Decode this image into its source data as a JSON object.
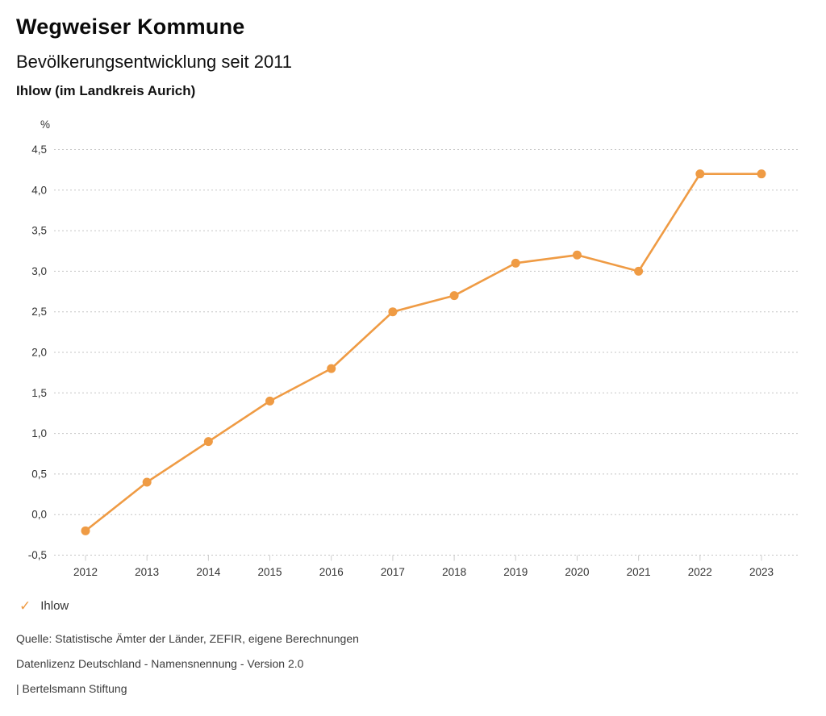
{
  "header": {
    "title": "Wegweiser Kommune",
    "subtitle": "Bevölkerungsentwicklung seit 2011",
    "location": "Ihlow (im Landkreis Aurich)"
  },
  "chart_data": {
    "type": "line",
    "title": "Bevölkerungsentwicklung seit 2011",
    "subtitle": "Ihlow (im Landkreis Aurich)",
    "unit_label": "%",
    "x": [
      "2012",
      "2013",
      "2014",
      "2015",
      "2016",
      "2017",
      "2018",
      "2019",
      "2020",
      "2021",
      "2022",
      "2023"
    ],
    "series": [
      {
        "name": "Ihlow",
        "color": "#ef9b44",
        "values": [
          -0.2,
          0.4,
          0.9,
          1.4,
          1.8,
          2.5,
          2.7,
          3.1,
          3.2,
          3.0,
          4.2,
          4.2
        ]
      }
    ],
    "ylim": [
      -0.5,
      4.5
    ],
    "ytick_step": 0.5,
    "ytick_labels": [
      "-0,5",
      "0,0",
      "0,5",
      "1,0",
      "1,5",
      "2,0",
      "2,5",
      "3,0",
      "3,5",
      "4,0",
      "4,5"
    ],
    "grid": "horizontal-dotted",
    "legend_position": "bottom-left"
  },
  "legend": {
    "check_icon": "✓",
    "items": [
      {
        "label": "Ihlow",
        "color": "#ef9b44"
      }
    ]
  },
  "footer": {
    "source": "Quelle: Statistische Ämter der Länder, ZEFIR, eigene Berechnungen",
    "license": "Datenlizenz Deutschland - Namensnennung - Version 2.0",
    "attribution": "| Bertelsmann Stiftung"
  },
  "colors": {
    "series_orange": "#ef9b44",
    "grid_line": "#c5c5c5",
    "tick_line": "#cccccc",
    "axis_text": "#333333",
    "footer_text": "#3c3c3c"
  }
}
